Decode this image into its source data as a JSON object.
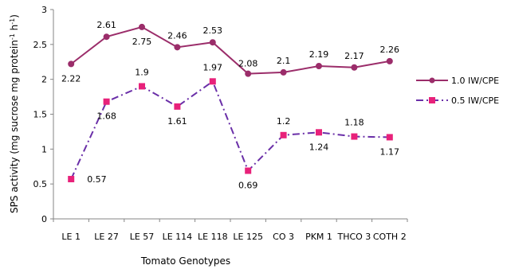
{
  "chart_data": {
    "type": "line",
    "xlabel": "Tomato Genotypes",
    "ylabel": "SPS activity (mg sucrose mg protein",
    "ylabel_sup1": "-1",
    "ylabel_mid": " h",
    "ylabel_sup2": "-1",
    "ylabel_end": ")",
    "ylim": [
      0,
      3
    ],
    "yticks": [
      "0",
      "0.5",
      "1",
      "1.5",
      "2",
      "2.5",
      "3"
    ],
    "categories": [
      "LE 1",
      "LE 27",
      "LE 57",
      "LE 114",
      "LE 118",
      "LE 125",
      "CO 3",
      "PKM 1",
      "THCO 3",
      "COTH 2"
    ],
    "legend_position": "right",
    "grid": false,
    "series": [
      {
        "name": "1.0 IW/CPE",
        "color": "#9b2d6a",
        "marker": "circle",
        "dash": "solid",
        "values": [
          2.22,
          2.61,
          2.75,
          2.46,
          2.53,
          2.08,
          2.1,
          2.19,
          2.17,
          2.26
        ],
        "labels": [
          "2.22",
          "2.61",
          "2.75",
          "2.46",
          "2.53",
          "2.08",
          "2.1",
          "2.19",
          "2.17",
          "2.26"
        ]
      },
      {
        "name": "0.5 IW/CPE",
        "color": "#6a2fa8",
        "marker_color": "#e8217a",
        "marker": "square",
        "dash": "dashdot",
        "values": [
          0.57,
          1.68,
          1.9,
          1.61,
          1.97,
          0.69,
          1.2,
          1.24,
          1.18,
          1.17
        ],
        "labels": [
          "0.57",
          "1.68",
          "1.9",
          "1.61",
          "1.97",
          "0.69",
          "1.2",
          "1.24",
          "1.18",
          "1.17"
        ]
      }
    ]
  }
}
